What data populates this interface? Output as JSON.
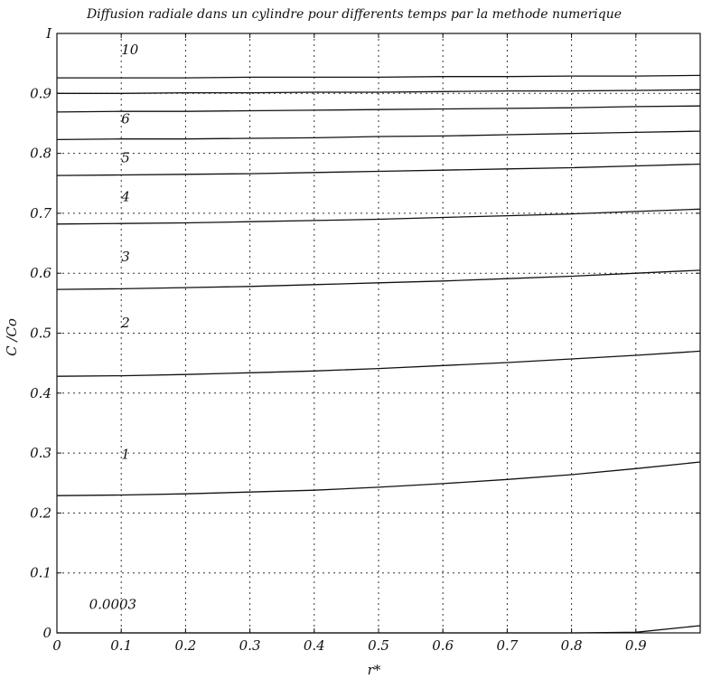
{
  "chart_data": {
    "type": "line",
    "title": "Diffusion radiale dans un cylindre pour differents temps par la methode numerique",
    "xlabel": "r*",
    "ylabel": "C /Co",
    "xlim": [
      0,
      1
    ],
    "ylim": [
      0,
      1
    ],
    "grid": true,
    "x_ticks": [
      "0",
      "0.1",
      "0.2",
      "0.3",
      "0.4",
      "0.5",
      "0.6",
      "0.7",
      "0.8",
      "0.9"
    ],
    "y_ticks": [
      "0",
      "0.1",
      "0.2",
      "0.3",
      "0.4",
      "0.5",
      "0.6",
      "0.7",
      "0.8",
      "0.9",
      "I"
    ],
    "x": [
      0,
      0.1,
      0.2,
      0.3,
      0.4,
      0.5,
      0.6,
      0.7,
      0.8,
      0.9,
      1.0
    ],
    "series": [
      {
        "name": "0.0003",
        "label_at": [
          0.05,
          0.04
        ],
        "values": [
          0,
          0,
          0,
          0,
          0,
          0,
          0,
          0,
          0,
          0.001,
          0.012
        ]
      },
      {
        "name": "1",
        "label_at": [
          0.1,
          0.29
        ],
        "values": [
          0.229,
          0.23,
          0.232,
          0.235,
          0.238,
          0.243,
          0.249,
          0.256,
          0.264,
          0.274,
          0.285
        ]
      },
      {
        "name": "2",
        "label_at": [
          0.1,
          0.51
        ],
        "values": [
          0.428,
          0.429,
          0.431,
          0.434,
          0.437,
          0.441,
          0.446,
          0.451,
          0.457,
          0.463,
          0.47
        ]
      },
      {
        "name": "3",
        "label_at": [
          0.1,
          0.62
        ],
        "values": [
          0.573,
          0.574,
          0.576,
          0.578,
          0.581,
          0.584,
          0.587,
          0.591,
          0.595,
          0.6,
          0.605
        ]
      },
      {
        "name": "4",
        "label_at": [
          0.1,
          0.72
        ],
        "values": [
          0.682,
          0.683,
          0.684,
          0.686,
          0.688,
          0.69,
          0.693,
          0.696,
          0.699,
          0.703,
          0.707
        ]
      },
      {
        "name": "5",
        "label_at": [
          0.1,
          0.785
        ],
        "values": [
          0.763,
          0.764,
          0.765,
          0.766,
          0.768,
          0.77,
          0.772,
          0.774,
          0.776,
          0.779,
          0.782
        ]
      },
      {
        "name": "6",
        "label_at": [
          0.1,
          0.85
        ],
        "values": [
          0.823,
          0.824,
          0.824,
          0.825,
          0.826,
          0.828,
          0.829,
          0.831,
          0.833,
          0.835,
          0.837
        ]
      },
      {
        "name": "",
        "label_at": null,
        "values": [
          0.869,
          0.87,
          0.87,
          0.871,
          0.872,
          0.873,
          0.874,
          0.875,
          0.876,
          0.878,
          0.879
        ]
      },
      {
        "name": "",
        "label_at": null,
        "values": [
          0.9,
          0.9,
          0.901,
          0.901,
          0.902,
          0.902,
          0.903,
          0.904,
          0.904,
          0.905,
          0.906
        ]
      },
      {
        "name": "10",
        "label_at": [
          0.1,
          0.965
        ],
        "values": [
          0.926,
          0.926,
          0.926,
          0.927,
          0.927,
          0.927,
          0.928,
          0.928,
          0.929,
          0.929,
          0.93
        ]
      }
    ]
  }
}
